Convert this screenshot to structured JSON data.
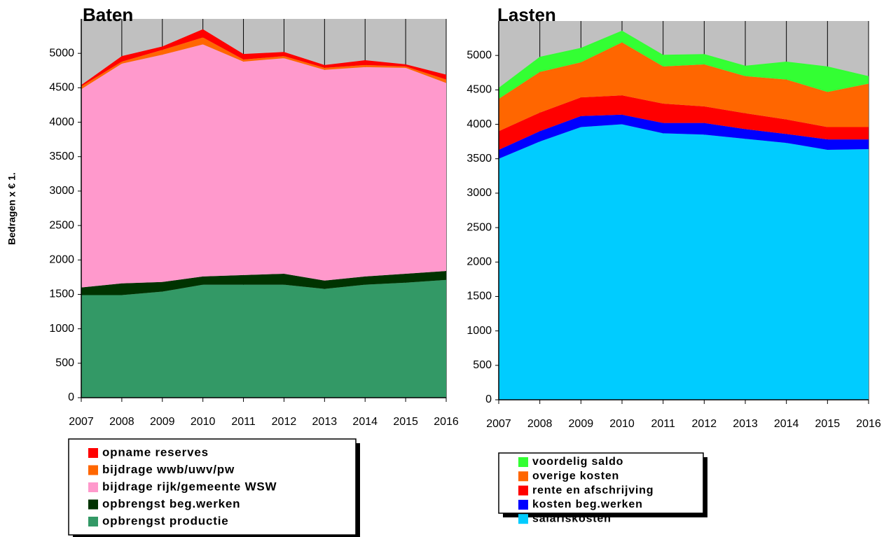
{
  "chart_data": [
    {
      "type": "area",
      "stacked": true,
      "title": "Baten",
      "y_label": "Bedragen x € 1.",
      "categories": [
        "2007",
        "2008",
        "2009",
        "2010",
        "2011",
        "2012",
        "2013",
        "2014",
        "2015",
        "2016"
      ],
      "ylim": [
        0,
        5500
      ],
      "yticks": [
        0,
        500,
        1000,
        1500,
        2000,
        2500,
        3000,
        3500,
        4000,
        4500,
        5000
      ],
      "plot_background": "#c0c0c0",
      "grid": "x",
      "series": [
        {
          "name": "opname reserves",
          "color": "#ff0000",
          "values": [
            20,
            80,
            50,
            120,
            80,
            60,
            40,
            70,
            30,
            70
          ]
        },
        {
          "name": "bijdrage wwb/uwv/pw",
          "color": "#ff6600",
          "values": [
            40,
            30,
            70,
            100,
            30,
            30,
            30,
            30,
            20,
            50
          ]
        },
        {
          "name": "bijdrage rijk/gemeente WSW",
          "color": "#ff99cc",
          "values": [
            2880,
            3190,
            3300,
            3370,
            3100,
            3130,
            3060,
            3040,
            2990,
            2730
          ]
        },
        {
          "name": "opbrengst beg.werken",
          "color": "#003300",
          "values": [
            110,
            170,
            140,
            120,
            140,
            160,
            120,
            120,
            130,
            130
          ]
        },
        {
          "name": "opbrengst productie",
          "color": "#339966",
          "values": [
            1490,
            1490,
            1540,
            1640,
            1640,
            1640,
            1580,
            1640,
            1670,
            1710
          ]
        }
      ]
    },
    {
      "type": "area",
      "stacked": true,
      "title": "Lasten",
      "categories": [
        "2007",
        "2008",
        "2009",
        "2010",
        "2011",
        "2012",
        "2013",
        "2014",
        "2015",
        "2016"
      ],
      "ylim": [
        0,
        5500
      ],
      "yticks": [
        0,
        500,
        1000,
        1500,
        2000,
        2500,
        3000,
        3500,
        4000,
        4500,
        5000
      ],
      "plot_background": "#c0c0c0",
      "grid": "x",
      "series": [
        {
          "name": "voordelig saldo",
          "color": "#33ff33",
          "values": [
            160,
            220,
            210,
            170,
            170,
            150,
            150,
            260,
            370,
            110
          ]
        },
        {
          "name": "overige kosten",
          "color": "#ff6600",
          "values": [
            470,
            590,
            510,
            770,
            540,
            610,
            540,
            580,
            510,
            630
          ]
        },
        {
          "name": "rente en afschrijving",
          "color": "#ff0000",
          "values": [
            270,
            270,
            270,
            280,
            280,
            240,
            230,
            210,
            180,
            180
          ]
        },
        {
          "name": "kosten beg.werken",
          "color": "#0000ff",
          "values": [
            130,
            150,
            160,
            140,
            150,
            170,
            140,
            130,
            150,
            140
          ]
        },
        {
          "name": "salariskosten",
          "color": "#00ccff",
          "values": [
            3500,
            3750,
            3960,
            4000,
            3870,
            3850,
            3790,
            3730,
            3630,
            3640
          ]
        }
      ]
    }
  ]
}
